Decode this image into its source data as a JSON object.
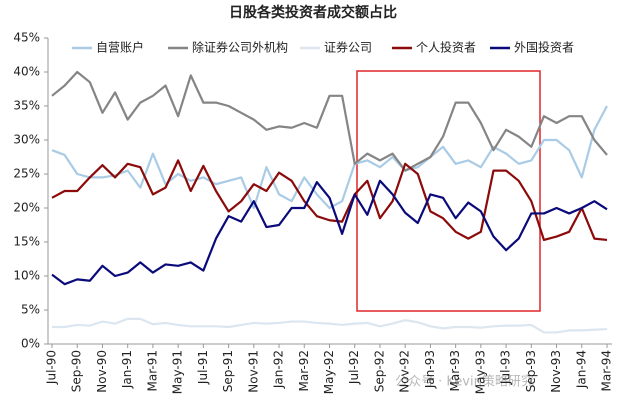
{
  "chart_data": {
    "type": "line",
    "title": "日股各类投资者成交额占比",
    "watermark": "公众号 · Kevin策略研究",
    "categories": [
      "Jul-90",
      null,
      "Sep-90",
      null,
      "Nov-90",
      null,
      "Jan-91",
      null,
      "Mar-91",
      null,
      "May-91",
      null,
      "Jul-91",
      null,
      "Sep-91",
      null,
      "Nov-91",
      null,
      "Jan-92",
      null,
      "Mar-92",
      null,
      "May-92",
      null,
      "Jul-92",
      null,
      "Sep-92",
      null,
      "Nov-92",
      null,
      "Jan-93",
      null,
      "Mar-93",
      null,
      "May-93",
      null,
      "Jul-93",
      null,
      "Sep-93",
      null,
      "Nov-93",
      null,
      "Jan-94",
      null,
      "Mar-94"
    ],
    "series": [
      {
        "name": "自营账户",
        "color": "#a9cbe6",
        "values": [
          28.5,
          27.8,
          25,
          24.5,
          24.5,
          24.8,
          25.5,
          23,
          28,
          23.5,
          25,
          24,
          24.5,
          23.5,
          24,
          24.5,
          20,
          26,
          22,
          21,
          24.5,
          22,
          20,
          21,
          26.5,
          27,
          26,
          27.5,
          25.5,
          26,
          27.5,
          29,
          26.5,
          27,
          26,
          29,
          28,
          26.5,
          27,
          30,
          30,
          28.5,
          24.5,
          31.5,
          35
        ]
      },
      {
        "name": "除证券公司外机构",
        "color": "#858585",
        "values": [
          36.5,
          38,
          40,
          38.5,
          34,
          37,
          33,
          35.5,
          36.5,
          38,
          33.5,
          39.5,
          35.5,
          35.5,
          35,
          34,
          33,
          31.5,
          32,
          31.8,
          32.5,
          31.8,
          36.5,
          36.5,
          26.5,
          28,
          27,
          28,
          25.5,
          26.5,
          27.5,
          30.5,
          35.5,
          35.5,
          32.5,
          28.5,
          31.5,
          30.5,
          29,
          33.5,
          32.5,
          33.5,
          33.5,
          30,
          27.8
        ]
      },
      {
        "name": "证券公司",
        "color": "#dbe6f1",
        "values": [
          2.5,
          2.5,
          2.8,
          2.7,
          3.3,
          3,
          3.7,
          3.7,
          2.9,
          3.1,
          2.8,
          2.6,
          2.6,
          2.6,
          2.5,
          2.8,
          3.1,
          3,
          3.1,
          3.3,
          3.3,
          3.1,
          3,
          2.8,
          3,
          3.1,
          2.6,
          3,
          3.5,
          3.2,
          2.6,
          2.3,
          2.5,
          2.5,
          2.4,
          2.6,
          2.7,
          2.7,
          2.8,
          1.7,
          1.7,
          2,
          2,
          2.1,
          2.2
        ]
      },
      {
        "name": "个人投资者",
        "color": "#8b0a0a",
        "values": [
          21.5,
          22.5,
          22.5,
          24.5,
          26.3,
          24.5,
          26.5,
          26,
          22,
          23,
          27,
          22.5,
          26.2,
          22.5,
          19.5,
          21,
          23.5,
          22.5,
          25.2,
          24,
          21,
          18.8,
          18.2,
          18,
          22,
          24,
          18.5,
          21,
          26.5,
          25,
          19.5,
          18.5,
          16.5,
          15.5,
          16.5,
          25.5,
          25.5,
          24,
          21,
          15.3,
          15.8,
          16.5,
          20,
          15.5,
          15.3
        ]
      },
      {
        "name": "外国投资者",
        "color": "#0a0a7a",
        "values": [
          10.2,
          8.8,
          9.5,
          9.3,
          11.5,
          10,
          10.5,
          12,
          10.5,
          11.7,
          11.5,
          12,
          10.8,
          15.5,
          18.8,
          18,
          21,
          17.2,
          17.5,
          20,
          20,
          23.8,
          21.5,
          16.2,
          22,
          19,
          24,
          22,
          19.3,
          17.8,
          22,
          21.5,
          18.5,
          20.8,
          19.5,
          15.8,
          13.8,
          15.5,
          19.2,
          19.2,
          20,
          19.2,
          20,
          21,
          19.8
        ]
      }
    ],
    "ylim": [
      0,
      45
    ],
    "yticks": [
      {
        "value": 0,
        "label": "0%"
      },
      {
        "value": 5,
        "label": "5%"
      },
      {
        "value": 10,
        "label": "10%"
      },
      {
        "value": 15,
        "label": "15%"
      },
      {
        "value": 20,
        "label": "20%"
      },
      {
        "value": 25,
        "label": "25%"
      },
      {
        "value": 30,
        "label": "30%"
      },
      {
        "value": 35,
        "label": "35%"
      },
      {
        "value": 40,
        "label": "40%"
      },
      {
        "value": 45,
        "label": "45%"
      }
    ],
    "grid": false,
    "legend": "top"
  }
}
